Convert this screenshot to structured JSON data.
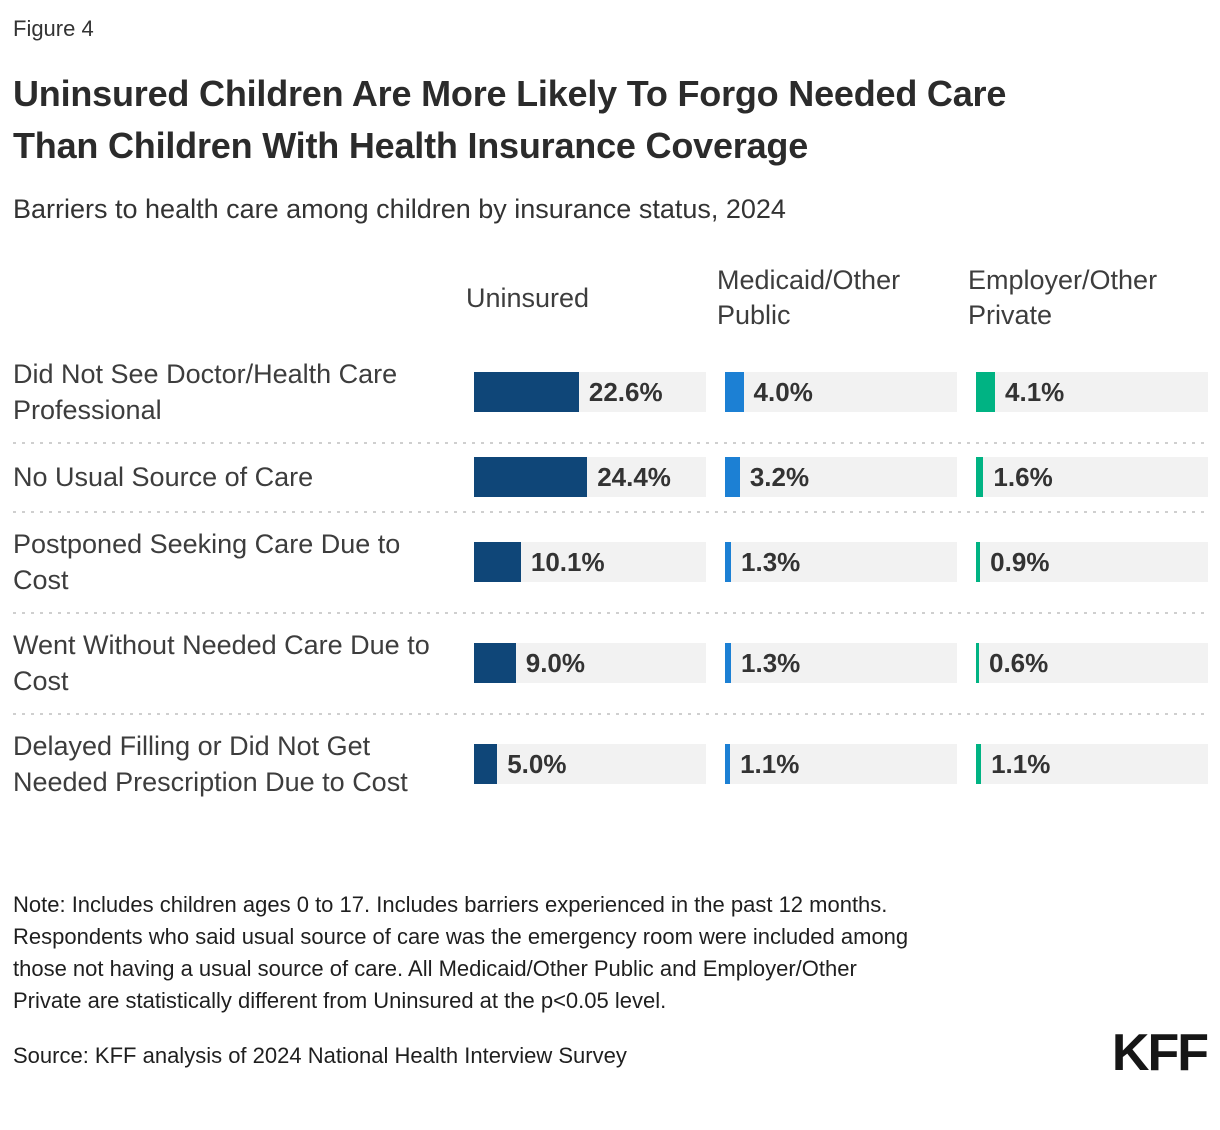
{
  "figure_label": "Figure 4",
  "title": "Uninsured Children Are More Likely To Forgo Needed Care\nThan Children With Health Insurance Coverage",
  "subtitle": "Barriers to health care among children by insurance status, 2024",
  "colors": {
    "uninsured": "#0f4678",
    "medicaid": "#1c80d4",
    "employer": "#00b383",
    "track": "#f2f2f2"
  },
  "chart_data": {
    "type": "bar",
    "orientation": "horizontal",
    "unit": "%",
    "axis_max": 50,
    "grid": false,
    "legend_position": "column-headers-top",
    "categories": [
      "Did Not See Doctor/Health Care Professional",
      "No Usual Source of Care",
      "Postponed Seeking Care Due to Cost",
      "Went Without Needed Care Due to Cost",
      "Delayed Filling or Did Not Get Needed Prescription Due to Cost"
    ],
    "series": [
      {
        "name": "Uninsured",
        "color": "#0f4678",
        "values": [
          22.6,
          24.4,
          10.1,
          9.0,
          5.0
        ],
        "labels": [
          "22.6%",
          "24.4%",
          "10.1%",
          "9.0%",
          "5.0%"
        ]
      },
      {
        "name": "Medicaid/Other Public",
        "color": "#1c80d4",
        "values": [
          4.0,
          3.2,
          1.3,
          1.3,
          1.1
        ],
        "labels": [
          "4.0%",
          "3.2%",
          "1.3%",
          "1.3%",
          "1.1%"
        ]
      },
      {
        "name": "Employer/Other Private",
        "color": "#00b383",
        "values": [
          4.1,
          1.6,
          0.9,
          0.6,
          1.1
        ],
        "labels": [
          "4.1%",
          "1.6%",
          "0.9%",
          "0.6%",
          "1.1%"
        ]
      }
    ]
  },
  "note": "Note: Includes children ages 0 to 17. Includes barriers experienced in the past 12 months.\nRespondents who said usual source of care was the emergency room were included among\nthose not having a usual source of care. All Medicaid/Other Public and Employer/Other\nPrivate are statistically different from Uninsured at the p<0.05 level.",
  "source": "Source: KFF analysis of 2024 National Health Interview Survey",
  "logo_text": "KFF"
}
